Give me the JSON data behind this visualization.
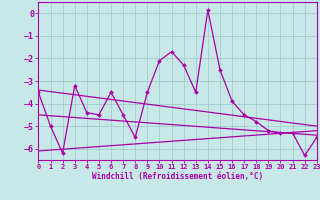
{
  "xlabel": "Windchill (Refroidissement éolien,°C)",
  "xlim": [
    0,
    23
  ],
  "ylim": [
    -6.5,
    0.5
  ],
  "xticks": [
    0,
    1,
    2,
    3,
    4,
    5,
    6,
    7,
    8,
    9,
    10,
    11,
    12,
    13,
    14,
    15,
    16,
    17,
    18,
    19,
    20,
    21,
    22,
    23
  ],
  "yticks": [
    0,
    -1,
    -2,
    -3,
    -4,
    -5,
    -6
  ],
  "bg_color": "#c8e8e8",
  "grid_color": "#98c8c8",
  "line_color": "#aa00aa",
  "main_y": [
    -3.5,
    -5.0,
    -6.2,
    -3.2,
    -4.4,
    -4.5,
    -3.5,
    -4.5,
    -5.5,
    -3.5,
    -2.1,
    -1.7,
    -2.3,
    -3.5,
    0.15,
    -2.5,
    -3.9,
    -4.5,
    -4.8,
    -5.2,
    -5.3,
    -5.3,
    -6.3,
    -5.5
  ],
  "trend_lines": [
    {
      "x": [
        0,
        23
      ],
      "y": [
        -3.4,
        -5.0
      ]
    },
    {
      "x": [
        0,
        23
      ],
      "y": [
        -4.5,
        -5.4
      ]
    },
    {
      "x": [
        0,
        23
      ],
      "y": [
        -6.1,
        -5.2
      ]
    }
  ]
}
